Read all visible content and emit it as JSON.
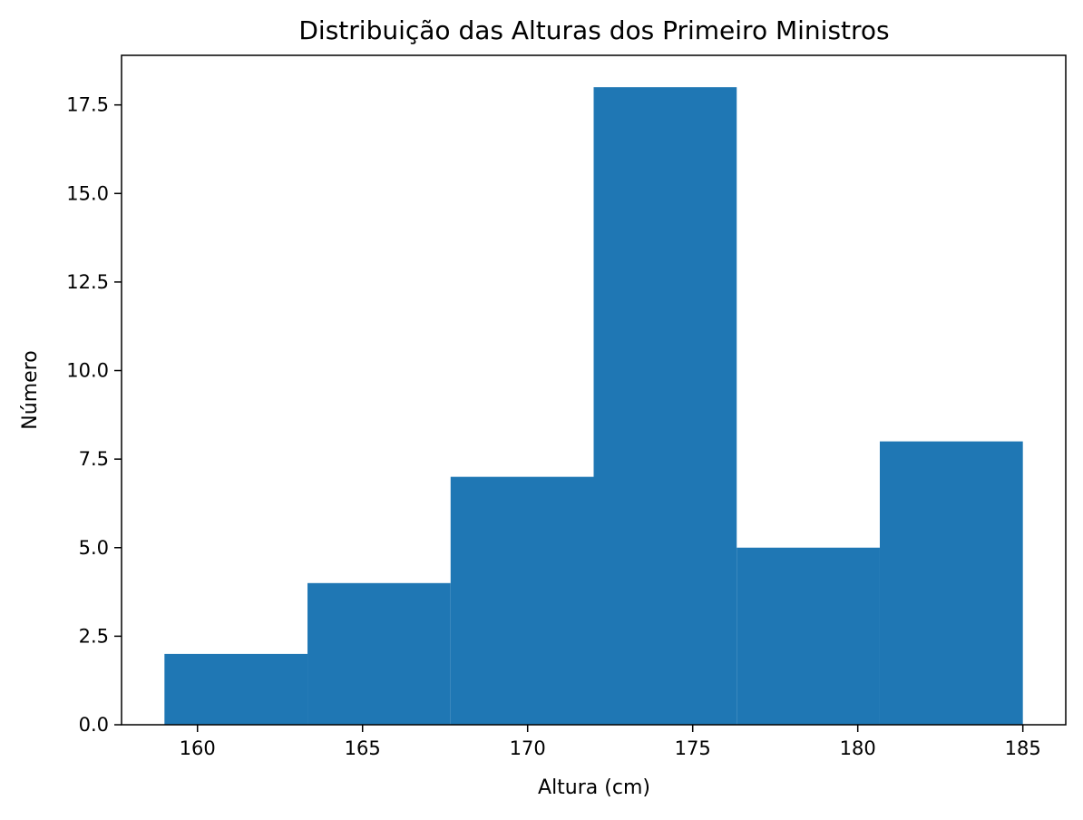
{
  "chart_data": {
    "type": "bar",
    "histogram": true,
    "title": "Distribuição das Alturas dos Primeiro Ministros",
    "xlabel": "Altura (cm)",
    "ylabel": "Número",
    "bins": [
      {
        "x_start": 159.0,
        "x_end": 163.333,
        "count": 2
      },
      {
        "x_start": 163.333,
        "x_end": 167.667,
        "count": 4
      },
      {
        "x_start": 167.667,
        "x_end": 172.0,
        "count": 7
      },
      {
        "x_start": 172.0,
        "x_end": 176.333,
        "count": 18
      },
      {
        "x_start": 176.333,
        "x_end": 180.667,
        "count": 5
      },
      {
        "x_start": 180.667,
        "x_end": 185.0,
        "count": 8
      }
    ],
    "xlim": [
      157.7,
      186.3
    ],
    "ylim": [
      0,
      18.9
    ],
    "x_ticks": [
      160,
      165,
      170,
      175,
      180,
      185
    ],
    "y_ticks": [
      0.0,
      2.5,
      5.0,
      7.5,
      10.0,
      12.5,
      15.0,
      17.5
    ],
    "x_tick_labels": [
      "160",
      "165",
      "170",
      "175",
      "180",
      "185"
    ],
    "y_tick_labels": [
      "0.0",
      "2.5",
      "5.0",
      "7.5",
      "10.0",
      "12.5",
      "15.0",
      "17.5"
    ],
    "bar_color": "#1f77b4",
    "grid": false,
    "legend": false
  }
}
